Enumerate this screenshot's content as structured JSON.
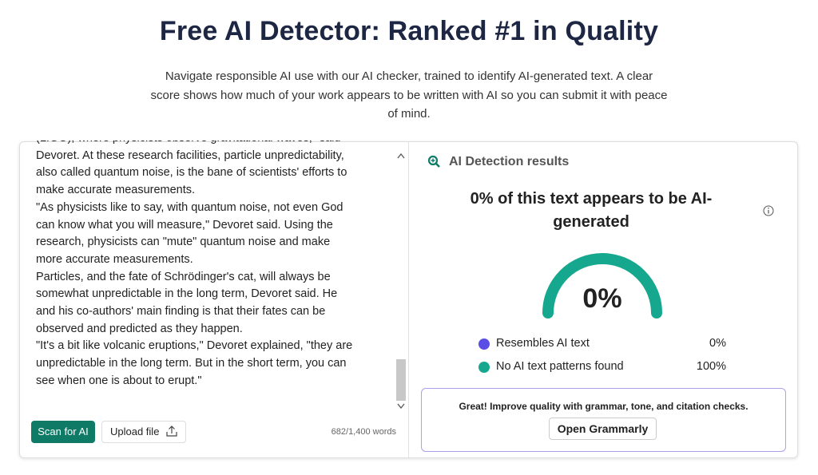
{
  "header": {
    "title": "Free AI Detector: Ranked #1 in Quality",
    "subtitle_lines": [
      "Navigate responsible AI use with our AI checker, trained to identify AI-generated text. A clear",
      "score shows how much of your work appears to be written with AI so you can submit it with peace",
      "of mind."
    ]
  },
  "editor": {
    "lines": [
      "(LIGO), where physicists observe gravitational waves,\" said",
      "Devoret. At these research facilities, particle unpredictability,",
      "also called quantum noise, is the bane of scientists' efforts to",
      "make accurate measurements.",
      "\"As physicists like to say, with quantum noise, not even God",
      "can know what you will measure,\" Devoret said. Using the",
      "research, physicists can \"mute\" quantum noise and make",
      "more accurate measurements.",
      "Particles, and the fate of Schrödinger's cat, will always be",
      "somewhat unpredictable in the long term, Devoret said. He",
      "and his co-authors' main finding is that their fates can be",
      "observed and predicted as they happen.",
      "\"It's a bit like volcanic eruptions,\" Devoret explained, \"they are",
      "unpredictable in the long term. But in the short term, you can",
      "see when one is about to erupt.\""
    ],
    "scan_button": "Scan for AI",
    "upload_button": "Upload file",
    "word_count": "682/1,400 words"
  },
  "results": {
    "heading": "AI Detection results",
    "summary_lines": [
      "0% of this text appears to be AI-",
      "generated"
    ],
    "gauge_label": "0%",
    "legend": [
      {
        "label": "Resembles AI text",
        "value": "0%"
      },
      {
        "label": "No AI text patterns found",
        "value": "100%"
      }
    ],
    "promo": {
      "text": "Great! Improve quality with grammar, tone, and citation checks.",
      "button": "Open Grammarly"
    }
  }
}
